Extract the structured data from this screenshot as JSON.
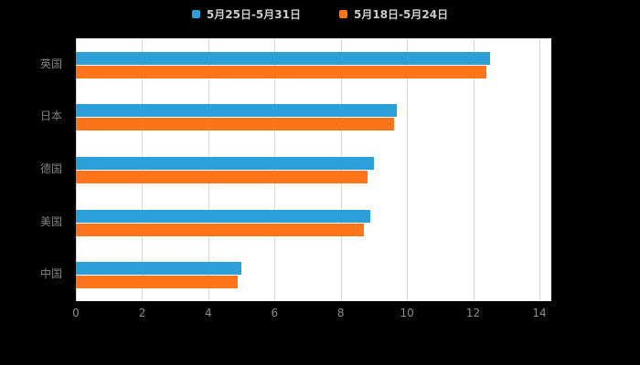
{
  "chart_data": {
    "type": "bar",
    "orientation": "horizontal",
    "title": "",
    "xlabel": "",
    "ylabel": "",
    "categories": [
      "英国",
      "日本",
      "德国",
      "美国",
      "中国"
    ],
    "series": [
      {
        "name": "5月25日-5月31日",
        "color": "#2D9FD8",
        "values": [
          12.5,
          9.7,
          9.0,
          8.9,
          5.0
        ]
      },
      {
        "name": "5月18日-5月24日",
        "color": "#FF7519",
        "values": [
          12.4,
          9.6,
          8.8,
          8.7,
          4.9
        ]
      }
    ],
    "xlim": [
      0,
      14
    ],
    "x_ticks": [
      0,
      2,
      4,
      6,
      8,
      10,
      12,
      14
    ],
    "grid": true,
    "legend_position": "top",
    "page_background": "#000000",
    "plot_background": "#FFFFFF",
    "gridline_color": "#DADADA",
    "axis_label_color": "#8C8C8C",
    "category_label_color": "#808080",
    "legend_text_color": "#CCCCCC"
  }
}
